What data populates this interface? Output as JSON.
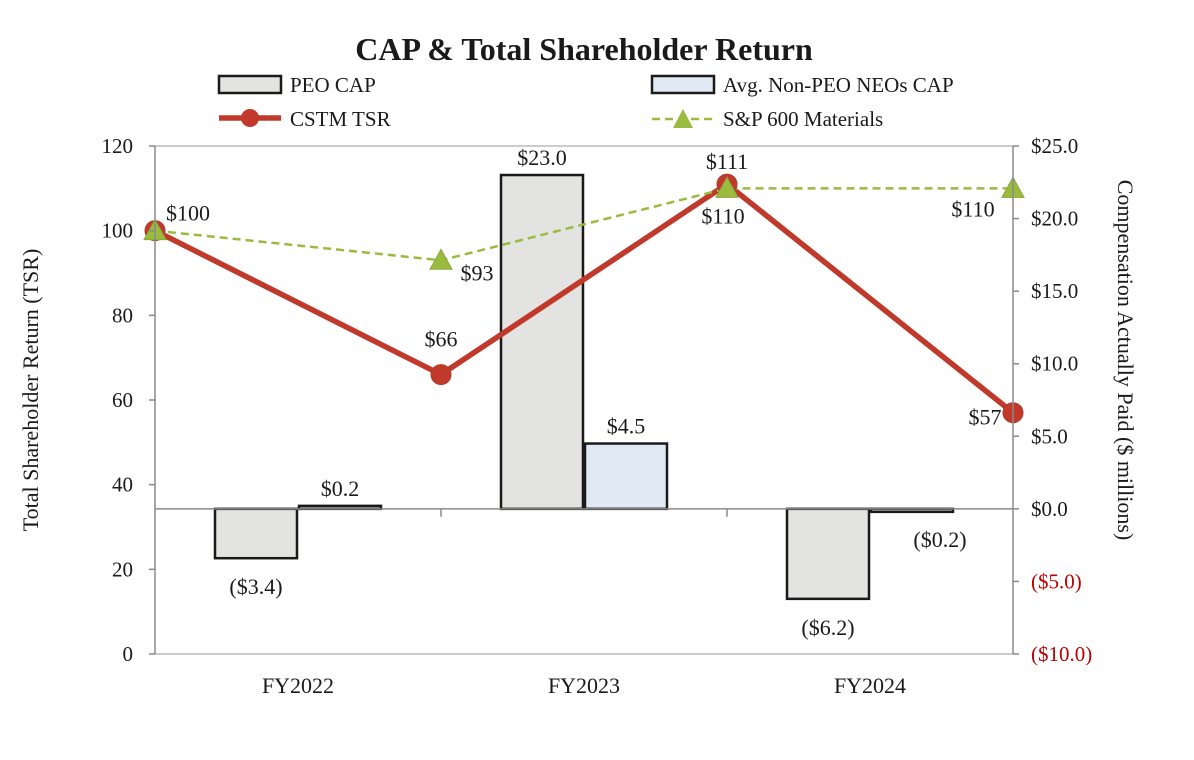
{
  "chart_data": {
    "type": "bar",
    "title": "CAP & Total Shareholder Return",
    "categories": [
      "FY2022",
      "FY2023",
      "FY2024"
    ],
    "legend": {
      "peo_cap": "PEO CAP",
      "neo_cap": "Avg. Non-PEO NEOs CAP",
      "cstm_tsr": "CSTM TSR",
      "sp600": "S&P 600 Materials"
    },
    "bar_series": [
      {
        "name": "PEO CAP",
        "values": [
          -3.4,
          23.0,
          -6.2
        ],
        "labels": [
          "($3.4)",
          "$23.0",
          "($6.2)"
        ],
        "color": "#e3e4e2"
      },
      {
        "name": "Avg. Non-PEO NEOs CAP",
        "values": [
          0.2,
          4.5,
          -0.2
        ],
        "labels": [
          "$0.2",
          "$4.5",
          "($0.2)"
        ],
        "color": "#e1e9f5"
      }
    ],
    "line_series": [
      {
        "name": "CSTM TSR",
        "values": [
          100,
          66,
          111,
          57
        ],
        "labels": [
          "$100",
          "$66",
          "$111",
          "$57"
        ],
        "color": "#c0392b"
      },
      {
        "name": "S&P 600 Materials",
        "values": [
          100,
          93,
          110,
          110
        ],
        "labels": [
          "",
          "$93",
          "$110",
          "$110"
        ],
        "color": "#9bbb3f"
      }
    ],
    "y_left": {
      "label": "Total Shareholder Return (TSR)",
      "min": 0,
      "max": 120,
      "ticks": [
        "0",
        "20",
        "40",
        "60",
        "80",
        "100",
        "120"
      ]
    },
    "y_right": {
      "label": "Compensation Actually Paid ($ millions)",
      "min": -10,
      "max": 25,
      "ticks": [
        "($10.0)",
        "($5.0)",
        "$0.0",
        "$5.0",
        "$10.0",
        "$15.0",
        "$20.0",
        "$25.0"
      ],
      "negative_color": "#c00000"
    }
  }
}
